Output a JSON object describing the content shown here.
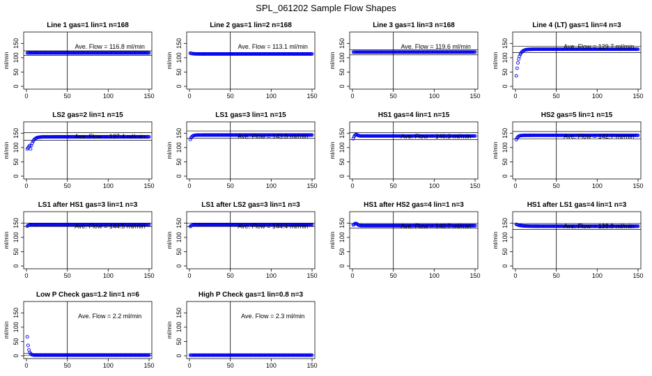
{
  "figure": {
    "title": "SPL_061202  Sample Flow Shapes"
  },
  "chart_data": [
    {
      "type": "scatter",
      "title": "Line 1 gas=1 lin=1 n=168",
      "ylabel": "ml/min",
      "annotation": "Ave. Flow =  116.8  ml/min",
      "xlim": [
        0,
        150
      ],
      "ylim": [
        0,
        180
      ],
      "xticks": [
        0,
        50,
        100,
        150
      ],
      "yticks": [
        0,
        50,
        100,
        150
      ],
      "vline": 50,
      "hlines": [
        108,
        124
      ],
      "shape": {
        "kind": "flat",
        "level": 116.8
      }
    },
    {
      "type": "scatter",
      "title": "Line 2 gas=1 lin=2 n=168",
      "ylabel": "ml/min",
      "annotation": "Ave. Flow =  113.1  ml/min",
      "xlim": [
        0,
        150
      ],
      "ylim": [
        0,
        180
      ],
      "xticks": [
        0,
        50,
        100,
        150
      ],
      "yticks": [
        0,
        50,
        100,
        150
      ],
      "vline": 50,
      "hlines": [],
      "shape": {
        "kind": "flat",
        "level": 113.1,
        "start": 117
      }
    },
    {
      "type": "scatter",
      "title": "Line 3 gas=1 lin=3 n=168",
      "ylabel": "ml/min",
      "annotation": "Ave. Flow =  119.6  ml/min",
      "xlim": [
        0,
        150
      ],
      "ylim": [
        0,
        180
      ],
      "xticks": [
        0,
        50,
        100,
        150
      ],
      "yticks": [
        0,
        50,
        100,
        150
      ],
      "vline": 50,
      "hlines": [
        110,
        128
      ],
      "shape": {
        "kind": "flat",
        "level": 119.6
      }
    },
    {
      "type": "scatter",
      "title": "Line 4 (LT) gas=1 lin=4 n=3",
      "ylabel": "ml/min",
      "annotation": "Ave. Flow =  129.7  ml/min",
      "xlim": [
        0,
        150
      ],
      "ylim": [
        0,
        180
      ],
      "xticks": [
        0,
        50,
        100,
        150
      ],
      "yticks": [
        0,
        50,
        100,
        150
      ],
      "vline": 50,
      "hlines": [
        118,
        140
      ],
      "shape": {
        "kind": "rise",
        "level": 129.7,
        "start": 0,
        "tau": 3
      }
    },
    {
      "type": "scatter",
      "title": "LS2 gas=2 lin=1 n=15",
      "ylabel": "ml/min",
      "annotation": "Ave. Flow =  137.4  ml/min",
      "xlim": [
        0,
        150
      ],
      "ylim": [
        0,
        180
      ],
      "xticks": [
        0,
        50,
        100,
        150
      ],
      "yticks": [
        0,
        50,
        100,
        150
      ],
      "vline": 50,
      "hlines": [
        125,
        152
      ],
      "shape": {
        "kind": "dip",
        "level": 137.4,
        "start": 122,
        "dip": 95
      }
    },
    {
      "type": "scatter",
      "title": "LS1 gas=3 lin=1 n=15",
      "ylabel": "ml/min",
      "annotation": "Ave. Flow =  143.8  ml/min",
      "xlim": [
        0,
        150
      ],
      "ylim": [
        0,
        180
      ],
      "xticks": [
        0,
        50,
        100,
        150
      ],
      "yticks": [
        0,
        50,
        100,
        150
      ],
      "vline": 50,
      "hlines": [
        132,
        158
      ],
      "shape": {
        "kind": "rise",
        "level": 143.8,
        "start": 118,
        "tau": 2
      }
    },
    {
      "type": "scatter",
      "title": "HS1 gas=4 lin=1 n=15",
      "ylabel": "ml/min",
      "annotation": "Ave. Flow =  140.3  ml/min",
      "xlim": [
        0,
        150
      ],
      "ylim": [
        0,
        180
      ],
      "xticks": [
        0,
        50,
        100,
        150
      ],
      "yticks": [
        0,
        50,
        100,
        150
      ],
      "vline": 50,
      "hlines": [
        128,
        152
      ],
      "shape": {
        "kind": "rise",
        "level": 140.3,
        "start": 118,
        "tau": 1.5,
        "bump": 6
      }
    },
    {
      "type": "scatter",
      "title": "HS2 gas=5 lin=1 n=15",
      "ylabel": "ml/min",
      "annotation": "Ave. Flow =  142.7  ml/min",
      "xlim": [
        0,
        150
      ],
      "ylim": [
        0,
        180
      ],
      "xticks": [
        0,
        50,
        100,
        150
      ],
      "yticks": [
        0,
        50,
        100,
        150
      ],
      "vline": 50,
      "hlines": [
        130,
        156
      ],
      "shape": {
        "kind": "rise",
        "level": 142.7,
        "start": 118,
        "tau": 2
      }
    },
    {
      "type": "scatter",
      "title": "LS1 after HS1 gas=3 lin=1 n=3",
      "ylabel": "ml/min",
      "annotation": "Ave. Flow =  144.5  ml/min",
      "xlim": [
        0,
        150
      ],
      "ylim": [
        0,
        180
      ],
      "xticks": [
        0,
        50,
        100,
        150
      ],
      "yticks": [
        0,
        50,
        100,
        150
      ],
      "vline": 50,
      "hlines": [
        138,
        150
      ],
      "shape": {
        "kind": "rise",
        "level": 144.5,
        "start": 136,
        "tau": 2
      }
    },
    {
      "type": "scatter",
      "title": "LS1 after LS2 gas=3 lin=1 n=3",
      "ylabel": "ml/min",
      "annotation": "Ave. Flow =  144.4  ml/min",
      "xlim": [
        0,
        150
      ],
      "ylim": [
        0,
        180
      ],
      "xticks": [
        0,
        50,
        100,
        150
      ],
      "yticks": [
        0,
        50,
        100,
        150
      ],
      "vline": 50,
      "hlines": [
        138,
        150
      ],
      "shape": {
        "kind": "rise",
        "level": 144.4,
        "start": 134,
        "tau": 2
      }
    },
    {
      "type": "scatter",
      "title": "HS1 after HS2 gas=4 lin=1 n=3",
      "ylabel": "ml/min",
      "annotation": "Ave. Flow =  140.7  ml/min",
      "xlim": [
        0,
        150
      ],
      "ylim": [
        0,
        180
      ],
      "xticks": [
        0,
        50,
        100,
        150
      ],
      "yticks": [
        0,
        50,
        100,
        150
      ],
      "vline": 50,
      "hlines": [
        132,
        148
      ],
      "shape": {
        "kind": "rise",
        "level": 140.7,
        "start": 140,
        "tau": 1.5,
        "bump": 8
      }
    },
    {
      "type": "scatter",
      "title": "HS1 after LS1 gas=4 lin=1 n=3",
      "ylabel": "ml/min",
      "annotation": "Ave. Flow =  138.9  ml/min",
      "xlim": [
        0,
        150
      ],
      "ylim": [
        0,
        180
      ],
      "xticks": [
        0,
        50,
        100,
        150
      ],
      "yticks": [
        0,
        50,
        100,
        150
      ],
      "vline": 50,
      "hlines": [
        128,
        148
      ],
      "shape": {
        "kind": "decay",
        "level": 138.9,
        "start": 147,
        "tau": 5
      }
    },
    {
      "type": "scatter",
      "title": "Low P Check gas=1.2 lin=1 n=6",
      "ylabel": "ml/min",
      "annotation": "Ave. Flow =  2.2  ml/min",
      "xlim": [
        0,
        150
      ],
      "ylim": [
        0,
        180
      ],
      "xticks": [
        0,
        50,
        100,
        150
      ],
      "yticks": [
        0,
        50,
        100,
        150
      ],
      "vline": 50,
      "hlines": [
        2,
        8
      ],
      "shape": {
        "kind": "decay",
        "level": 2.2,
        "start": 122,
        "tau": 1.6
      }
    },
    {
      "type": "scatter",
      "title": "High P Check gas=1 lin=0.8 n=3",
      "ylabel": "ml/min",
      "annotation": "Ave. Flow =  2.3  ml/min",
      "xlim": [
        0,
        150
      ],
      "ylim": [
        0,
        180
      ],
      "xticks": [
        0,
        50,
        100,
        150
      ],
      "yticks": [
        0,
        50,
        100,
        150
      ],
      "vline": 50,
      "hlines": [],
      "shape": {
        "kind": "flat",
        "level": 2.3
      }
    }
  ]
}
